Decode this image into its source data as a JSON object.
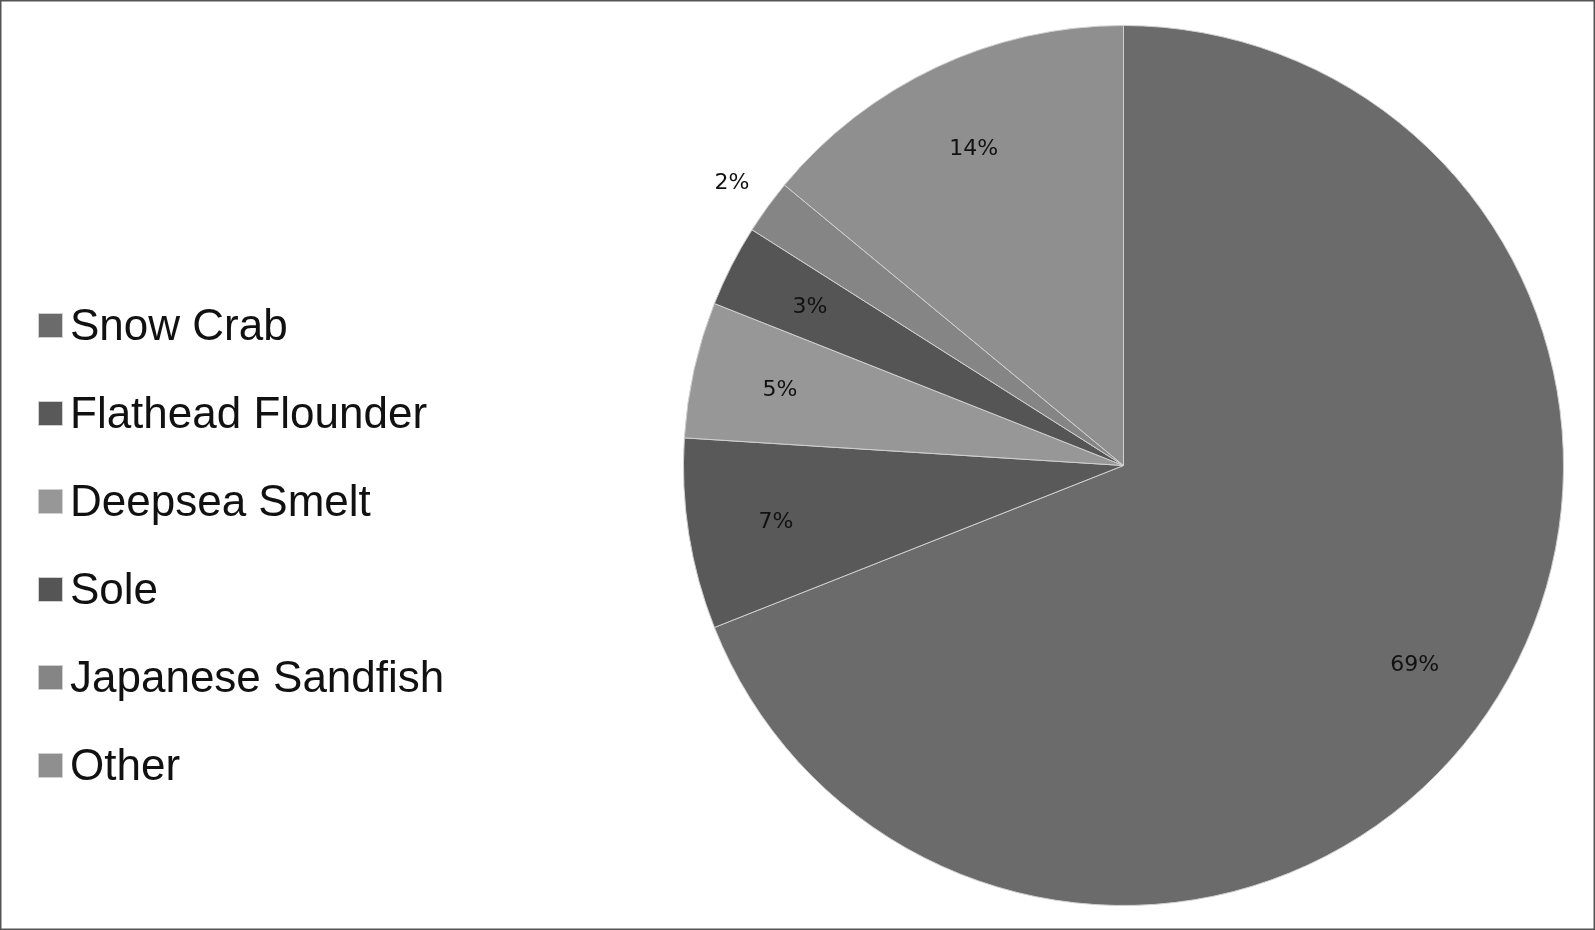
{
  "chart_data": {
    "type": "pie",
    "categories": [
      "Snow Crab",
      "Flathead Flounder",
      "Deepsea Smelt",
      "Sole",
      "Japanese Sandfish",
      "Other"
    ],
    "values": [
      69,
      7,
      5,
      3,
      2,
      14
    ],
    "colors": [
      "#6b6b6b",
      "#595959",
      "#979797",
      "#555555",
      "#858585",
      "#8f8f8f"
    ],
    "value_labels": [
      "69%",
      "7%",
      "5%",
      "3%",
      "2%",
      "14%"
    ],
    "legend": "left"
  }
}
